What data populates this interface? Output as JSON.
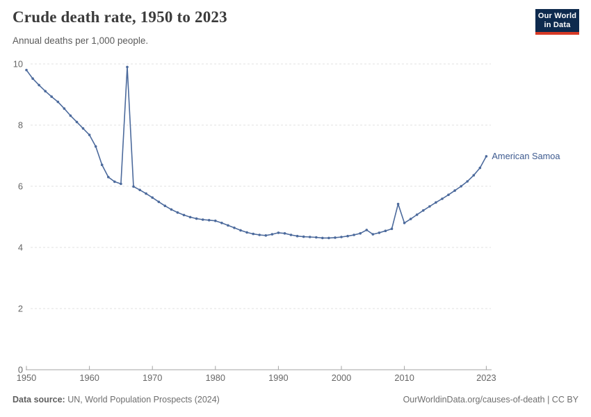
{
  "header": {
    "title": "Crude death rate, 1950 to 2023",
    "subtitle": "Annual deaths per 1,000 people.",
    "logo": {
      "line1": "Our World",
      "line2": "in Data",
      "bg_color": "#0d2a4e",
      "accent_color": "#d73a26"
    }
  },
  "chart_data": {
    "type": "line",
    "title": "Crude death rate, 1950 to 2023",
    "xlabel": "",
    "ylabel": "Annual deaths per 1,000 people",
    "ylim": [
      0,
      10
    ],
    "yticks": [
      0,
      2,
      4,
      6,
      8,
      10
    ],
    "xticks": [
      1950,
      1960,
      1970,
      1980,
      1990,
      2000,
      2010,
      2023
    ],
    "x_range": [
      1950,
      2023
    ],
    "grid": "horizontal-dashed",
    "legend_position": "end-of-line-label",
    "line_color": "#4c6a9c",
    "series": [
      {
        "name": "American Samoa",
        "color": "#4c6a9c",
        "x": [
          1950,
          1951,
          1952,
          1953,
          1954,
          1955,
          1956,
          1957,
          1958,
          1959,
          1960,
          1961,
          1962,
          1963,
          1964,
          1965,
          1966,
          1967,
          1968,
          1969,
          1970,
          1971,
          1972,
          1973,
          1974,
          1975,
          1976,
          1977,
          1978,
          1979,
          1980,
          1981,
          1982,
          1983,
          1984,
          1985,
          1986,
          1987,
          1988,
          1989,
          1990,
          1991,
          1992,
          1993,
          1994,
          1995,
          1996,
          1997,
          1998,
          1999,
          2000,
          2001,
          2002,
          2003,
          2004,
          2005,
          2006,
          2007,
          2008,
          2009,
          2010,
          2011,
          2012,
          2013,
          2014,
          2015,
          2016,
          2017,
          2018,
          2019,
          2020,
          2021,
          2022,
          2023
        ],
        "values": [
          9.8,
          9.52,
          9.31,
          9.11,
          8.93,
          8.76,
          8.54,
          8.31,
          8.1,
          7.89,
          7.68,
          7.3,
          6.7,
          6.3,
          6.15,
          6.08,
          9.9,
          5.99,
          5.88,
          5.76,
          5.63,
          5.49,
          5.36,
          5.24,
          5.14,
          5.06,
          4.99,
          4.94,
          4.91,
          4.89,
          4.87,
          4.8,
          4.72,
          4.64,
          4.56,
          4.49,
          4.44,
          4.41,
          4.39,
          4.43,
          4.48,
          4.46,
          4.41,
          4.37,
          4.35,
          4.34,
          4.33,
          4.31,
          4.31,
          4.32,
          4.34,
          4.37,
          4.41,
          4.46,
          4.57,
          4.43,
          4.48,
          4.54,
          4.61,
          5.42,
          4.8,
          4.93,
          5.07,
          5.21,
          5.34,
          5.47,
          5.59,
          5.72,
          5.86,
          6.0,
          6.16,
          6.36,
          6.6,
          6.98
        ]
      }
    ],
    "annotations": {
      "entity_label": "American Samoa",
      "entity_label_color": "#3d5a8f"
    }
  },
  "footer": {
    "source_label": "Data source:",
    "source_text": "UN, World Population Prospects (2024)",
    "link_text": "OurWorldinData.org/causes-of-death | CC BY"
  }
}
